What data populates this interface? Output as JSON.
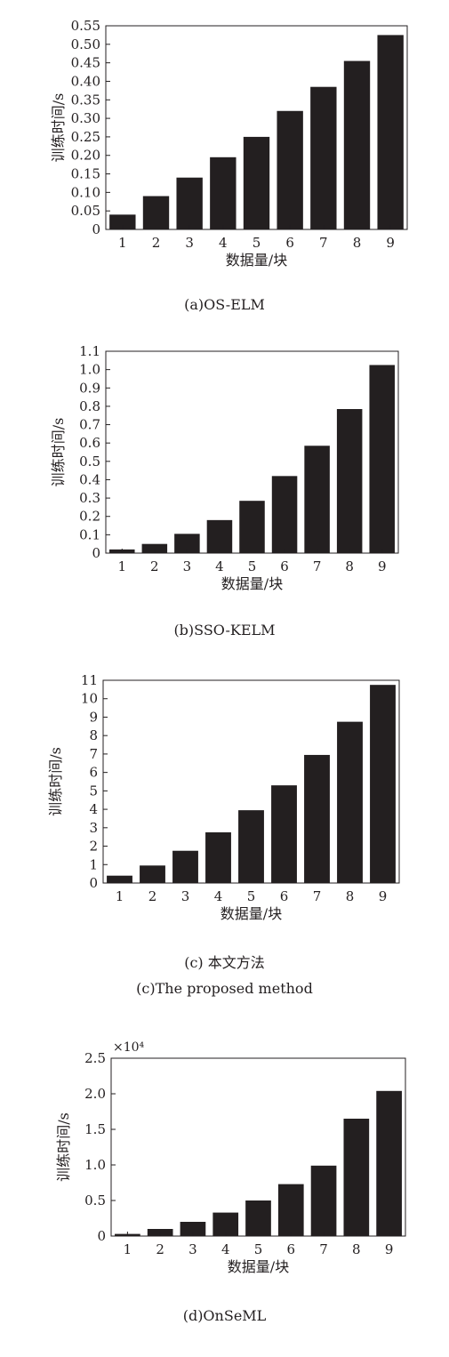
{
  "chart_data": [
    {
      "type": "bar",
      "ylabel": "训练时间/s",
      "xlabel": "数据量/块",
      "categories": [
        "1",
        "2",
        "3",
        "4",
        "5",
        "6",
        "7",
        "8",
        "9"
      ],
      "values": [
        0.04,
        0.09,
        0.14,
        0.195,
        0.25,
        0.32,
        0.385,
        0.455,
        0.525
      ],
      "ylim": [
        0,
        0.55
      ],
      "yticks": [
        "0",
        "0.05",
        "0.10",
        "0.15",
        "0.20",
        "0.25",
        "0.30",
        "0.35",
        "0.40",
        "0.45",
        "0.50",
        "0.55"
      ],
      "exponent_label": "",
      "captions": [
        "(a)OS-ELM"
      ]
    },
    {
      "type": "bar",
      "ylabel": "训练时间/s",
      "xlabel": "数据量/块",
      "categories": [
        "1",
        "2",
        "3",
        "4",
        "5",
        "6",
        "7",
        "8",
        "9"
      ],
      "values": [
        0.02,
        0.05,
        0.105,
        0.18,
        0.285,
        0.42,
        0.585,
        0.785,
        1.025
      ],
      "ylim": [
        0,
        1.1
      ],
      "yticks": [
        "0",
        "0.1",
        "0.2",
        "0.3",
        "0.4",
        "0.5",
        "0.6",
        "0.7",
        "0.8",
        "0.9",
        "1.0",
        "1.1"
      ],
      "exponent_label": "",
      "captions": [
        "(b)SSO-KELM"
      ]
    },
    {
      "type": "bar",
      "ylabel": "训练时间/s",
      "xlabel": "数据量/块",
      "categories": [
        "1",
        "2",
        "3",
        "4",
        "5",
        "6",
        "7",
        "8",
        "9"
      ],
      "values": [
        0.4,
        0.95,
        1.75,
        2.75,
        3.95,
        5.3,
        6.95,
        8.75,
        10.75
      ],
      "ylim": [
        0,
        11
      ],
      "yticks": [
        "0",
        "1",
        "2",
        "3",
        "4",
        "5",
        "6",
        "7",
        "8",
        "9",
        "10",
        "11"
      ],
      "exponent_label": "",
      "captions": [
        "(c) 本文方法",
        "(c)The proposed method"
      ]
    },
    {
      "type": "bar",
      "ylabel": "训练时间/s",
      "xlabel": "数据量/块",
      "categories": [
        "1",
        "2",
        "3",
        "4",
        "5",
        "6",
        "7",
        "8",
        "9"
      ],
      "values": [
        0.03,
        0.1,
        0.2,
        0.33,
        0.5,
        0.73,
        0.99,
        1.65,
        2.04
      ],
      "ylim": [
        0,
        2.5
      ],
      "yticks": [
        "0",
        "0.5",
        "1.0",
        "1.5",
        "2.0",
        "2.5"
      ],
      "exponent_label": "×10⁴",
      "captions": [
        "(d)OnSeML"
      ]
    }
  ],
  "colors": {
    "bar": "#231f20",
    "axis": "#231f20",
    "background": "#ffffff"
  }
}
